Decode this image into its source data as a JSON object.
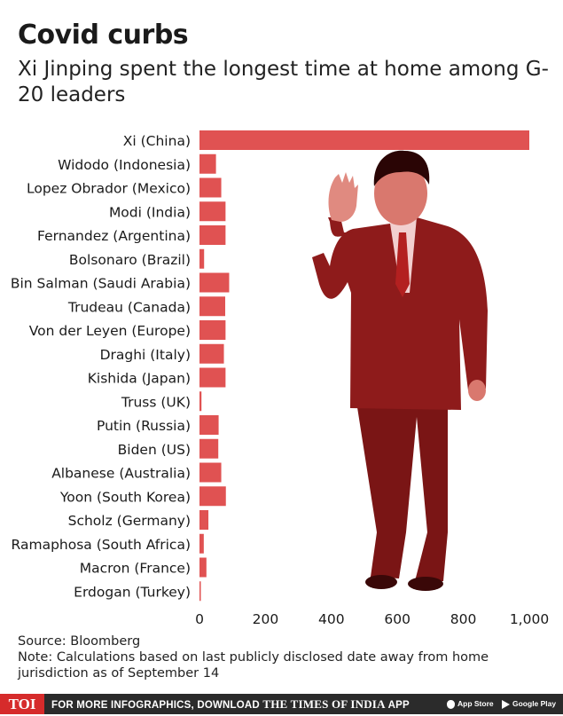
{
  "title": "Covid curbs",
  "subtitle": "Xi Jinping spent the longest time at home among G-20 leaders",
  "colors": {
    "bar": "#e05252",
    "photo_tint": "#c62b2b",
    "footer_bg": "#2b2b2b",
    "logo_red": "#d62b2b"
  },
  "chart_data": {
    "type": "bar",
    "orientation": "horizontal",
    "title": "Covid curbs",
    "subtitle": "Xi Jinping spent the longest time at home among G-20 leaders",
    "xlabel": "",
    "ylabel": "",
    "xlim": [
      0,
      1000
    ],
    "x_ticks": [
      "0",
      "200",
      "400",
      "600",
      "800",
      "1,000"
    ],
    "grid": false,
    "categories": [
      "Xi (China)",
      "Widodo (Indonesia)",
      "Lopez Obrador (Mexico)",
      "Modi (India)",
      "Fernandez (Argentina)",
      "Bolsonaro (Brazil)",
      "Bin Salman (Saudi Arabia)",
      "Trudeau (Canada)",
      "Von der Leyen (Europe)",
      "Draghi (Italy)",
      "Kishida (Japan)",
      "Truss (UK)",
      "Putin (Russia)",
      "Biden (US)",
      "Albanese (Australia)",
      "Yoon (South Korea)",
      "Scholz (Germany)",
      "Ramaphosa (South Africa)",
      "Macron (France)",
      "Erdogan (Turkey)"
    ],
    "values": [
      1000,
      50,
      66,
      79,
      79,
      14,
      90,
      78,
      79,
      74,
      79,
      6,
      58,
      57,
      66,
      80,
      27,
      13,
      21,
      3
    ]
  },
  "footnotes": {
    "source": "Source: Bloomberg",
    "note": "Note: Calculations based on last publicly disclosed date away from home jurisdiction as of September 14"
  },
  "footer": {
    "logo": "TOI",
    "cta": "FOR MORE INFOGRAPHICS, DOWNLOAD",
    "brand": "THE TIMES OF INDIA",
    "app": "APP",
    "app_store": "App Store",
    "google_play": "Google Play"
  }
}
